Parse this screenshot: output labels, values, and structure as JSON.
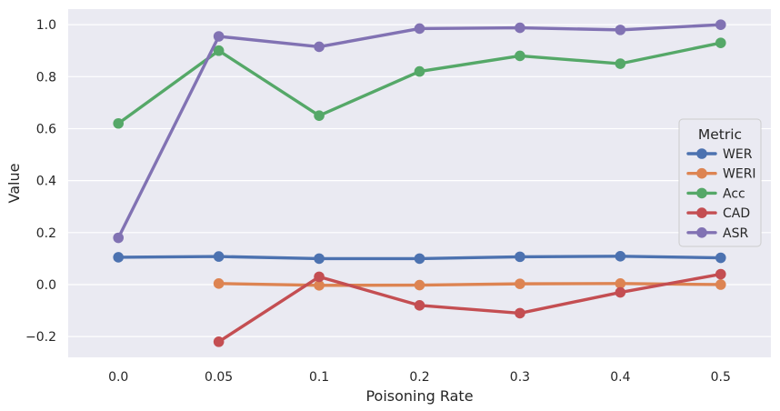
{
  "chart_data": {
    "type": "line",
    "categories": [
      "0.0",
      "0.05",
      "0.1",
      "0.2",
      "0.3",
      "0.4",
      "0.5"
    ],
    "xlabel": "Poisoning Rate",
    "ylabel": "Value",
    "ylim": [
      -0.28,
      1.06
    ],
    "yticks": [
      -0.2,
      0.0,
      0.2,
      0.4,
      0.6,
      0.8,
      1.0
    ],
    "ytick_labels": [
      "−0.2",
      "0.0",
      "0.2",
      "0.4",
      "0.6",
      "0.8",
      "1.0"
    ],
    "grid": true,
    "background": "#eaeaf2",
    "legend": {
      "title": "Metric",
      "placement": "center-right"
    },
    "series": [
      {
        "name": "WER",
        "color": "#4c72b0",
        "values": [
          0.105,
          0.108,
          0.1,
          0.1,
          0.107,
          0.109,
          0.103
        ]
      },
      {
        "name": "WERI",
        "color": "#dd8452",
        "values": [
          null,
          0.004,
          -0.003,
          -0.002,
          0.003,
          0.004,
          0.0
        ]
      },
      {
        "name": "Acc",
        "color": "#55a868",
        "values": [
          0.62,
          0.9,
          0.65,
          0.82,
          0.88,
          0.85,
          0.93
        ]
      },
      {
        "name": "CAD",
        "color": "#c44e52",
        "values": [
          null,
          -0.22,
          0.03,
          -0.08,
          -0.11,
          -0.03,
          0.04
        ]
      },
      {
        "name": "ASR",
        "color": "#8172b3",
        "values": [
          0.18,
          0.955,
          0.915,
          0.985,
          0.988,
          0.98,
          1.0
        ]
      }
    ]
  }
}
